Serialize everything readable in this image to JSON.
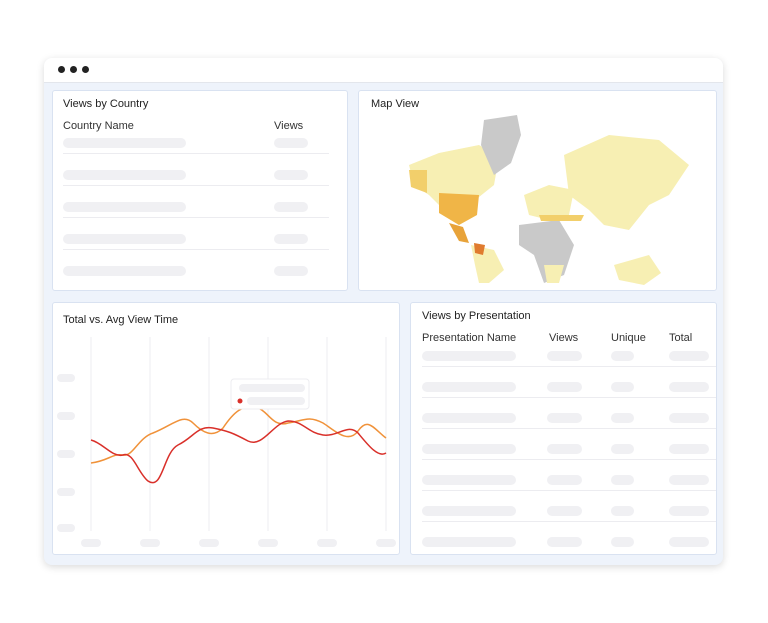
{
  "country_panel": {
    "title": "Views by Country",
    "columns": [
      "Country Name",
      "Views"
    ]
  },
  "map_panel": {
    "title": "Map View"
  },
  "time_panel": {
    "title": "Total vs. Avg View Time"
  },
  "presentation_panel": {
    "title": "Views by Presentation",
    "columns": [
      "Presentation Name",
      "Views",
      "Unique",
      "Total"
    ]
  }
}
